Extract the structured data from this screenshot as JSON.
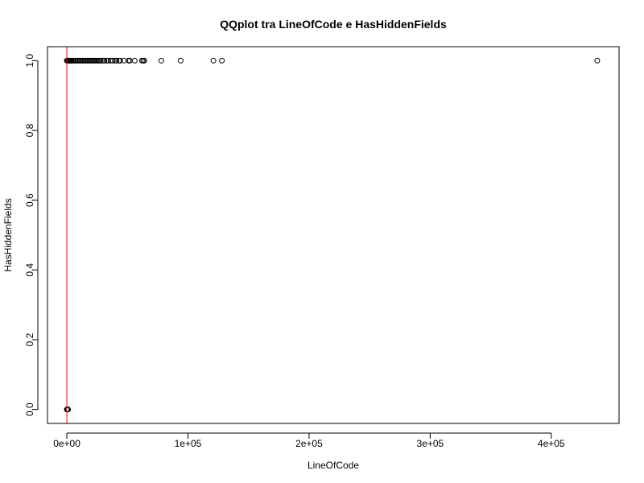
{
  "chart_data": {
    "type": "scatter",
    "title": "QQplot tra LineOfCode e HasHiddenFields",
    "xlabel": "LineOfCode",
    "ylabel": "HasHiddenFields",
    "xlim": [
      -16000,
      456000
    ],
    "ylim": [
      -0.04,
      1.04
    ],
    "x_ticks": [
      0,
      100000,
      200000,
      300000,
      400000
    ],
    "x_tick_labels": [
      "0e+00",
      "1e+05",
      "2e+05",
      "3e+05",
      "4e+05"
    ],
    "y_ticks": [
      0.0,
      0.2,
      0.4,
      0.6,
      0.8,
      1.0
    ],
    "y_tick_labels": [
      "0.0",
      "0.2",
      "0.4",
      "0.6",
      "0.8",
      "1.0"
    ],
    "grid": false,
    "reference_line": {
      "type": "vertical",
      "x": 0,
      "color": "#ff0000"
    },
    "series": [
      {
        "marker": "open-circle",
        "color": "#000000",
        "points": [
          {
            "x": 0,
            "y": 0
          },
          {
            "x": 200,
            "y": 0
          },
          {
            "x": 400,
            "y": 0
          },
          {
            "x": 600,
            "y": 0
          },
          {
            "x": 800,
            "y": 0
          },
          {
            "x": 1000,
            "y": 0
          },
          {
            "x": 0,
            "y": 1
          },
          {
            "x": 500,
            "y": 1
          },
          {
            "x": 1000,
            "y": 1
          },
          {
            "x": 1500,
            "y": 1
          },
          {
            "x": 2000,
            "y": 1
          },
          {
            "x": 2500,
            "y": 1
          },
          {
            "x": 3000,
            "y": 1
          },
          {
            "x": 3500,
            "y": 1
          },
          {
            "x": 4000,
            "y": 1
          },
          {
            "x": 5000,
            "y": 1
          },
          {
            "x": 6000,
            "y": 1
          },
          {
            "x": 7000,
            "y": 1
          },
          {
            "x": 8000,
            "y": 1
          },
          {
            "x": 9000,
            "y": 1
          },
          {
            "x": 10000,
            "y": 1
          },
          {
            "x": 11000,
            "y": 1
          },
          {
            "x": 12000,
            "y": 1
          },
          {
            "x": 13000,
            "y": 1
          },
          {
            "x": 14000,
            "y": 1
          },
          {
            "x": 15000,
            "y": 1
          },
          {
            "x": 16000,
            "y": 1
          },
          {
            "x": 17000,
            "y": 1
          },
          {
            "x": 18000,
            "y": 1
          },
          {
            "x": 19000,
            "y": 1
          },
          {
            "x": 20000,
            "y": 1
          },
          {
            "x": 21000,
            "y": 1
          },
          {
            "x": 22000,
            "y": 1
          },
          {
            "x": 23000,
            "y": 1
          },
          {
            "x": 24000,
            "y": 1
          },
          {
            "x": 25000,
            "y": 1
          },
          {
            "x": 26000,
            "y": 1
          },
          {
            "x": 27000,
            "y": 1
          },
          {
            "x": 28000,
            "y": 1
          },
          {
            "x": 30000,
            "y": 1
          },
          {
            "x": 31000,
            "y": 1
          },
          {
            "x": 33000,
            "y": 1
          },
          {
            "x": 34000,
            "y": 1
          },
          {
            "x": 36000,
            "y": 1
          },
          {
            "x": 38000,
            "y": 1
          },
          {
            "x": 40000,
            "y": 1
          },
          {
            "x": 41000,
            "y": 1
          },
          {
            "x": 43000,
            "y": 1
          },
          {
            "x": 44000,
            "y": 1
          },
          {
            "x": 47000,
            "y": 1
          },
          {
            "x": 51000,
            "y": 1
          },
          {
            "x": 52000,
            "y": 1
          },
          {
            "x": 56000,
            "y": 1
          },
          {
            "x": 62000,
            "y": 1
          },
          {
            "x": 63000,
            "y": 1
          },
          {
            "x": 64000,
            "y": 1
          },
          {
            "x": 78000,
            "y": 1
          },
          {
            "x": 94000,
            "y": 1
          },
          {
            "x": 121000,
            "y": 1
          },
          {
            "x": 128000,
            "y": 1
          },
          {
            "x": 438000,
            "y": 1
          }
        ]
      }
    ]
  }
}
